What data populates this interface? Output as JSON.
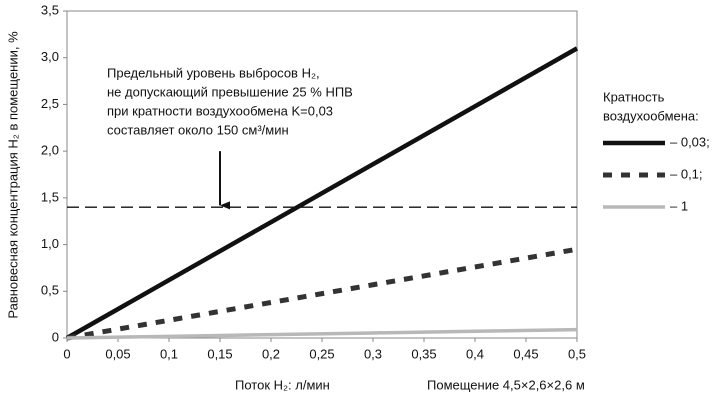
{
  "chart_data": {
    "type": "line",
    "y_label": "Равновесная концентрация H₂ в помещении, %",
    "x_label": "Поток H₂: л/мин",
    "x_note": "Помещение 4,5×2,6×2,6 м",
    "x": [
      0,
      0.1,
      0.2,
      0.3,
      0.4,
      0.5
    ],
    "series": [
      {
        "name": "– 0,03;",
        "color": "#111111",
        "dash": "solid",
        "values": [
          0,
          0.62,
          1.24,
          1.86,
          2.48,
          3.1
        ]
      },
      {
        "name": "– 0,1;",
        "color": "#333333",
        "dash": "dashed",
        "values": [
          0,
          0.19,
          0.38,
          0.57,
          0.76,
          0.95
        ]
      },
      {
        "name": "– 1",
        "color": "#b8b8b8",
        "dash": "solid",
        "values": [
          0,
          0.018,
          0.036,
          0.054,
          0.072,
          0.09
        ]
      }
    ],
    "legend_title": [
      "Кратность",
      "воздухообмена:"
    ],
    "legend_position": "right",
    "xlim": [
      0,
      0.5
    ],
    "ylim": [
      0,
      3.5
    ],
    "xticks": [
      0,
      {
        "value": 0.05,
        "label": "0,05"
      },
      {
        "value": 0.1,
        "label": "0,1"
      },
      {
        "value": 0.15,
        "label": "0,15"
      },
      {
        "value": 0.2,
        "label": "0,2"
      },
      {
        "value": 0.25,
        "label": "0,25"
      },
      {
        "value": 0.3,
        "label": "0,3"
      },
      {
        "value": 0.35,
        "label": "0,35"
      },
      {
        "value": 0.4,
        "label": "0,4"
      },
      {
        "value": 0.45,
        "label": "0,45"
      },
      {
        "value": 0.5,
        "label": "0,5"
      }
    ],
    "yticks": [
      0,
      {
        "value": 0.5,
        "label": "0,5"
      },
      {
        "value": 1,
        "label": "1,0"
      },
      {
        "value": 1.5,
        "label": "1,5"
      },
      {
        "value": 2,
        "label": "2,0"
      },
      {
        "value": 2.5,
        "label": "2,5"
      },
      {
        "value": 3,
        "label": "3,0"
      },
      {
        "value": 3.5,
        "label": "3,5"
      }
    ],
    "grid": false,
    "reference_line": 1.4,
    "annotation": {
      "lines": [
        "Предельный уровень выбросов H₂,",
        "не допускающий превышение 25 % НПВ",
        "при кратности воздухообмена K=0,03",
        "составляет около 150 см³/мин"
      ],
      "arrow_x": 0.15,
      "arrow_from": 2.0,
      "arrow_to": 1.42
    }
  }
}
